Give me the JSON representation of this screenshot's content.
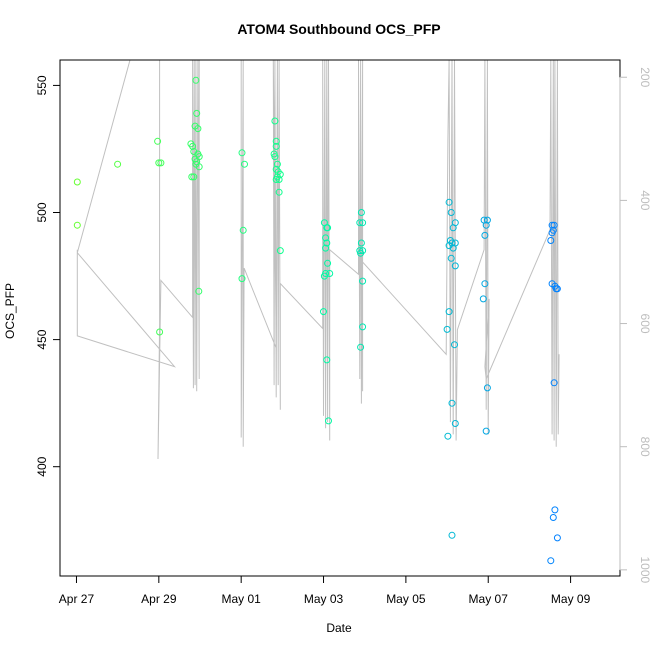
{
  "chart_data": {
    "type": "scatter",
    "title": "ATOM4 Southbound OCS_PFP",
    "xlabel": "Date",
    "ylabel": "OCS_PFP",
    "x_ticks": [
      "Apr 27",
      "Apr 29",
      "May 01",
      "May 03",
      "May 05",
      "May 07",
      "May 09"
    ],
    "y_ticks": [
      "400",
      "450",
      "500",
      "550"
    ],
    "y2_ticks": [
      "200",
      "400",
      "600",
      "800",
      "1000"
    ],
    "xlim_days": [
      26.6,
      40.2
    ],
    "ylim": [
      357,
      560
    ],
    "y2lim": [
      1010,
      172
    ],
    "colors": {
      "profile": "#c0c0c0",
      "secondary_axis": "#bdbdbd",
      "gradient_start": "#66ff33",
      "gradient_end": "#0080ff"
    },
    "points": [
      [
        27.02,
        512
      ],
      [
        27.02,
        495
      ],
      [
        28.0,
        519
      ],
      [
        28.97,
        528
      ],
      [
        29.0,
        519.5
      ],
      [
        29.05,
        519.5
      ],
      [
        29.02,
        453
      ],
      [
        29.78,
        527
      ],
      [
        29.82,
        526
      ],
      [
        29.85,
        524
      ],
      [
        29.88,
        521
      ],
      [
        29.9,
        519
      ],
      [
        29.8,
        514
      ],
      [
        29.85,
        514
      ],
      [
        29.9,
        552
      ],
      [
        29.92,
        539
      ],
      [
        29.88,
        534
      ],
      [
        29.95,
        533
      ],
      [
        29.95,
        523
      ],
      [
        29.98,
        522
      ],
      [
        29.92,
        520
      ],
      [
        29.98,
        518
      ],
      [
        29.97,
        469
      ],
      [
        31.02,
        523.5
      ],
      [
        31.08,
        519
      ],
      [
        31.05,
        493
      ],
      [
        31.02,
        474
      ],
      [
        31.82,
        536
      ],
      [
        31.85,
        528
      ],
      [
        31.85,
        526
      ],
      [
        31.8,
        523
      ],
      [
        31.82,
        522
      ],
      [
        31.88,
        519
      ],
      [
        31.85,
        517
      ],
      [
        31.9,
        516
      ],
      [
        31.95,
        515
      ],
      [
        31.88,
        514
      ],
      [
        31.92,
        513
      ],
      [
        31.85,
        513
      ],
      [
        31.92,
        508
      ],
      [
        31.95,
        485
      ],
      [
        33.02,
        496
      ],
      [
        33.08,
        494
      ],
      [
        33.1,
        494
      ],
      [
        33.05,
        490
      ],
      [
        33.08,
        488
      ],
      [
        33.05,
        486
      ],
      [
        33.1,
        480
      ],
      [
        33.05,
        476
      ],
      [
        33.15,
        476
      ],
      [
        33.02,
        475
      ],
      [
        33.0,
        461
      ],
      [
        33.08,
        442
      ],
      [
        33.12,
        418
      ],
      [
        33.92,
        500
      ],
      [
        33.88,
        496
      ],
      [
        33.95,
        496
      ],
      [
        33.92,
        488
      ],
      [
        33.88,
        485
      ],
      [
        33.95,
        485
      ],
      [
        33.9,
        484
      ],
      [
        33.95,
        473
      ],
      [
        33.95,
        455
      ],
      [
        33.9,
        447
      ],
      [
        36.05,
        504
      ],
      [
        36.1,
        500
      ],
      [
        36.2,
        496
      ],
      [
        36.15,
        494
      ],
      [
        36.08,
        489
      ],
      [
        36.12,
        488
      ],
      [
        36.2,
        488
      ],
      [
        36.05,
        487
      ],
      [
        36.15,
        486
      ],
      [
        36.1,
        482
      ],
      [
        36.2,
        479
      ],
      [
        36.05,
        461
      ],
      [
        36.0,
        454
      ],
      [
        36.18,
        448
      ],
      [
        36.12,
        425
      ],
      [
        36.2,
        417
      ],
      [
        36.02,
        412
      ],
      [
        36.12,
        373
      ],
      [
        36.9,
        497
      ],
      [
        36.98,
        497
      ],
      [
        36.95,
        495
      ],
      [
        36.92,
        491
      ],
      [
        36.92,
        472
      ],
      [
        36.88,
        466
      ],
      [
        36.98,
        431
      ],
      [
        36.95,
        414
      ],
      [
        38.55,
        495
      ],
      [
        38.6,
        495
      ],
      [
        38.58,
        493
      ],
      [
        38.55,
        492
      ],
      [
        38.52,
        489
      ],
      [
        38.55,
        472
      ],
      [
        38.62,
        471
      ],
      [
        38.68,
        470
      ],
      [
        38.65,
        470
      ],
      [
        38.6,
        433
      ],
      [
        38.62,
        383
      ],
      [
        38.58,
        380
      ],
      [
        38.68,
        372
      ],
      [
        38.52,
        363
      ]
    ]
  }
}
